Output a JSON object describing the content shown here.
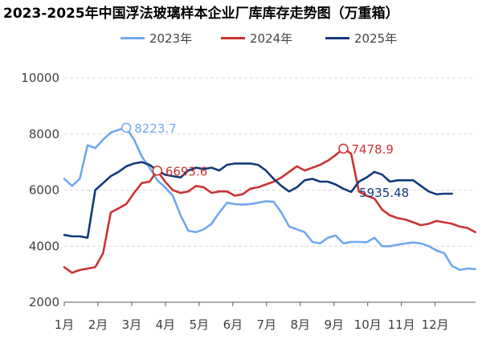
{
  "colors": {
    "s2023": "#6fa8f0",
    "s2024": "#cc3333",
    "s2025": "#123b7a",
    "grid": "#d9d9d9",
    "axis": "#595959"
  },
  "chart_data": {
    "type": "line",
    "title": "2023-2025年中国浮法玻璃样本企业厂库库存走势图（万重箱）",
    "xlabel": "",
    "ylabel": "",
    "ylim": [
      2000,
      10000
    ],
    "yticks": [
      2000,
      4000,
      6000,
      8000,
      10000
    ],
    "xlim": [
      1,
      13.2
    ],
    "categories": [
      "1月",
      "2月",
      "3月",
      "4月",
      "5月",
      "6月",
      "7月",
      "8月",
      "9月",
      "10月",
      "11月",
      "12月"
    ],
    "grid": true,
    "legend_position": "top",
    "series": [
      {
        "name": "2023年",
        "color": "#6fa8f0",
        "x": [
          1.0,
          1.23,
          1.46,
          1.69,
          1.92,
          2.15,
          2.38,
          2.61,
          2.84,
          3.07,
          3.3,
          3.53,
          3.76,
          3.99,
          4.22,
          4.45,
          4.68,
          4.91,
          5.14,
          5.37,
          5.6,
          5.83,
          6.06,
          6.29,
          6.52,
          6.75,
          6.98,
          7.21,
          7.44,
          7.67,
          7.9,
          8.13,
          8.36,
          8.59,
          8.82,
          9.05,
          9.28,
          9.51,
          9.74,
          9.97,
          10.2,
          10.43,
          10.66,
          10.89,
          11.12,
          11.35,
          11.58,
          11.81,
          12.04,
          12.27,
          12.5,
          12.73,
          12.96,
          13.19
        ],
        "y": [
          6400,
          6150,
          6400,
          7600,
          7500,
          7800,
          8050,
          8150,
          8223.7,
          7800,
          7200,
          6800,
          6350,
          6100,
          5800,
          5100,
          4550,
          4500,
          4600,
          4800,
          5200,
          5550,
          5500,
          5480,
          5500,
          5550,
          5600,
          5580,
          5200,
          4700,
          4600,
          4500,
          4150,
          4100,
          4300,
          4380,
          4100,
          4150,
          4150,
          4140,
          4300,
          4000,
          4000,
          4050,
          4100,
          4130,
          4100,
          4000,
          3850,
          3750,
          3300,
          3150,
          3200,
          3180
        ]
      },
      {
        "name": "2024年",
        "color": "#cc3333",
        "x": [
          1.0,
          1.23,
          1.46,
          1.69,
          1.92,
          2.15,
          2.38,
          2.61,
          2.84,
          3.07,
          3.3,
          3.53,
          3.76,
          3.99,
          4.22,
          4.45,
          4.68,
          4.91,
          5.14,
          5.37,
          5.6,
          5.83,
          6.06,
          6.29,
          6.52,
          6.75,
          6.98,
          7.21,
          7.44,
          7.67,
          7.9,
          8.13,
          8.36,
          8.59,
          8.82,
          9.05,
          9.28,
          9.51,
          9.74,
          9.97,
          10.2,
          10.43,
          10.66,
          10.89,
          11.12,
          11.35,
          11.58,
          11.81,
          12.04,
          12.27,
          12.5,
          12.73,
          12.96,
          13.19
        ],
        "y": [
          3250,
          3050,
          3150,
          3200,
          3250,
          3750,
          5200,
          5350,
          5500,
          5900,
          6250,
          6300,
          6693.6,
          6300,
          6000,
          5900,
          5950,
          6150,
          6100,
          5900,
          5950,
          5950,
          5800,
          5850,
          6050,
          6100,
          6200,
          6300,
          6450,
          6650,
          6850,
          6700,
          6800,
          6900,
          7050,
          7250,
          7478.9,
          7300,
          5950,
          5800,
          5700,
          5300,
          5100,
          5000,
          4950,
          4850,
          4750,
          4800,
          4900,
          4850,
          4800,
          4700,
          4650,
          4500
        ]
      },
      {
        "name": "2025年",
        "color": "#123b7a",
        "x": [
          1.0,
          1.23,
          1.46,
          1.69,
          1.92,
          2.15,
          2.38,
          2.61,
          2.84,
          3.07,
          3.3,
          3.53,
          3.76,
          3.99,
          4.22,
          4.45,
          4.68,
          4.91,
          5.14,
          5.37,
          5.6,
          5.83,
          6.06,
          6.29,
          6.52,
          6.75,
          6.98,
          7.21,
          7.44,
          7.67,
          7.9,
          8.13,
          8.36,
          8.59,
          8.82,
          9.05,
          9.28,
          9.51,
          9.74,
          9.97,
          10.2,
          10.43,
          10.66,
          10.89,
          11.12,
          11.35,
          11.58,
          11.81,
          12.04,
          12.27,
          12.5
        ],
        "y": [
          4400,
          4350,
          4350,
          4300,
          6000,
          6250,
          6500,
          6650,
          6850,
          6950,
          7000,
          6900,
          6700,
          6550,
          6500,
          6450,
          6700,
          6800,
          6750,
          6800,
          6700,
          6900,
          6950,
          6950,
          6950,
          6900,
          6700,
          6400,
          6150,
          5950,
          6100,
          6350,
          6400,
          6300,
          6300,
          6200,
          6050,
          5935.48,
          6300,
          6450,
          6650,
          6550,
          6300,
          6350,
          6350,
          6350,
          6150,
          5950,
          5850,
          5870,
          5870
        ]
      }
    ],
    "annotations": [
      {
        "text": "8223.7",
        "series": 0,
        "x": 2.84,
        "y": 8223.7
      },
      {
        "text": "6693.6",
        "series": 1,
        "x": 3.76,
        "y": 6693.6
      },
      {
        "text": "7478.9",
        "series": 1,
        "x": 9.28,
        "y": 7478.9
      },
      {
        "text": "5935.48",
        "series": 2,
        "x": 9.51,
        "y": 5935.48
      }
    ]
  }
}
